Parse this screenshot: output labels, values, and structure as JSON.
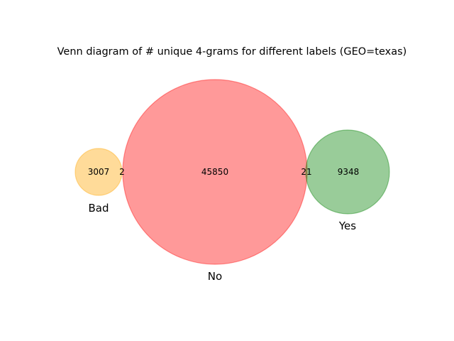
{
  "chart_data": {
    "type": "venn",
    "title": "Venn diagram of # unique 4-grams for different labels (GEO=texas)",
    "sets": [
      {
        "name": "Bad",
        "color": "#ffa500",
        "opacity": 0.4
      },
      {
        "name": "No",
        "color": "#ff0000",
        "opacity": 0.4
      },
      {
        "name": "Yes",
        "color": "#008000",
        "opacity": 0.4
      }
    ],
    "regions": [
      {
        "id": "bad_only",
        "label": "3007"
      },
      {
        "id": "bad_no",
        "label": "2"
      },
      {
        "id": "no_only",
        "label": "45850"
      },
      {
        "id": "no_yes",
        "label": "21"
      },
      {
        "id": "yes_only",
        "label": "9348"
      }
    ]
  }
}
